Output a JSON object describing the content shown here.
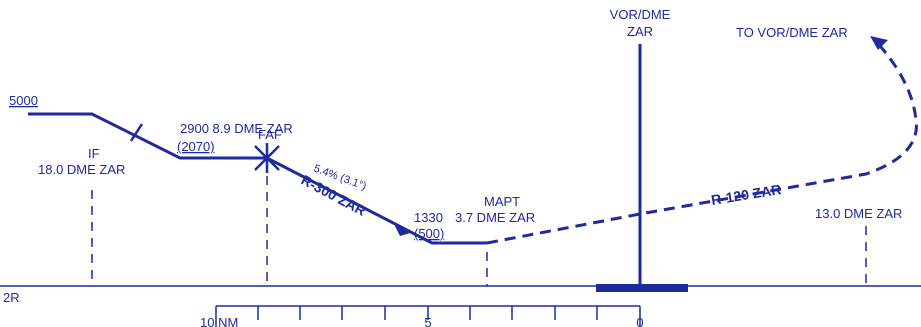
{
  "colors": {
    "ink": "#1f2a9c",
    "background": "#ffffff"
  },
  "labels": {
    "vor_dme_line1": "VOR/DME",
    "vor_dme_line2": "ZAR",
    "to_vor": "TO VOR/DME ZAR",
    "alt_5000": "5000",
    "if_mark": "IF",
    "if_dme": "18.0 DME ZAR",
    "faf": "FAF",
    "faf_alt_dme": "2900  8.9 DME ZAR",
    "faf_hat": "(2070)",
    "gradient": "5.4% (3.1°)",
    "radial_300": "R-300 ZAR",
    "alt_1330": "1330",
    "hat_500": "(500)",
    "mapt": "MAPT",
    "mapt_dme": "3.7 DME ZAR",
    "radial_120": "R-120 ZAR",
    "dme_13": "13.0 DME ZAR",
    "runway_partial": "2R",
    "scale_10nm": "10 NM",
    "scale_5": "5",
    "scale_0": "0"
  }
}
